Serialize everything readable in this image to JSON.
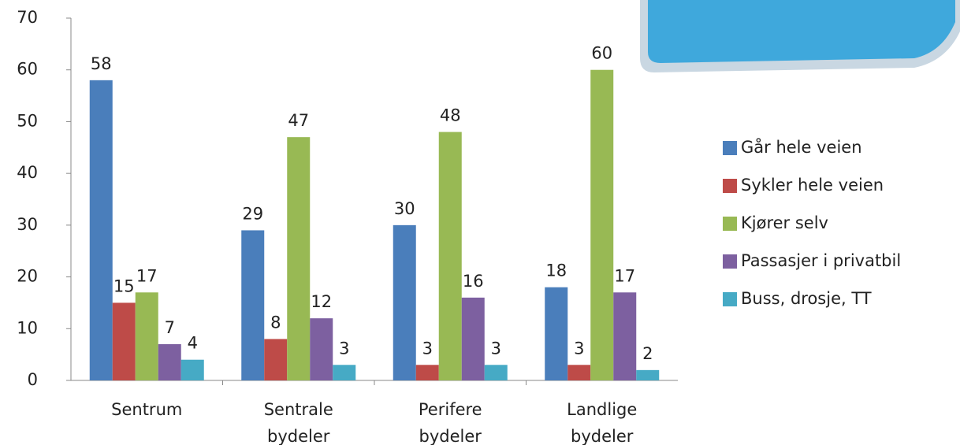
{
  "chart_data": {
    "type": "bar",
    "categories": [
      "Sentrum",
      "Sentrale bydeler",
      "Perifere bydeler",
      "Landlige bydeler"
    ],
    "series": [
      {
        "name": "Går hele veien",
        "color": "#4a7ebb",
        "values": [
          58,
          29,
          30,
          18
        ]
      },
      {
        "name": "Sykler hele veien",
        "color": "#be4b48",
        "values": [
          15,
          8,
          3,
          3
        ]
      },
      {
        "name": "Kjører selv",
        "color": "#98b954",
        "values": [
          17,
          47,
          48,
          60
        ]
      },
      {
        "name": "Passasjer i privatbil",
        "color": "#7d60a0",
        "values": [
          7,
          12,
          16,
          17
        ]
      },
      {
        "name": "Buss, drosje, TT",
        "color": "#46aac5",
        "values": [
          4,
          3,
          3,
          2
        ]
      }
    ],
    "ylim": [
      0,
      70
    ],
    "yticks": [
      0,
      10,
      20,
      30,
      40,
      50,
      60,
      70
    ],
    "legend": "right"
  }
}
